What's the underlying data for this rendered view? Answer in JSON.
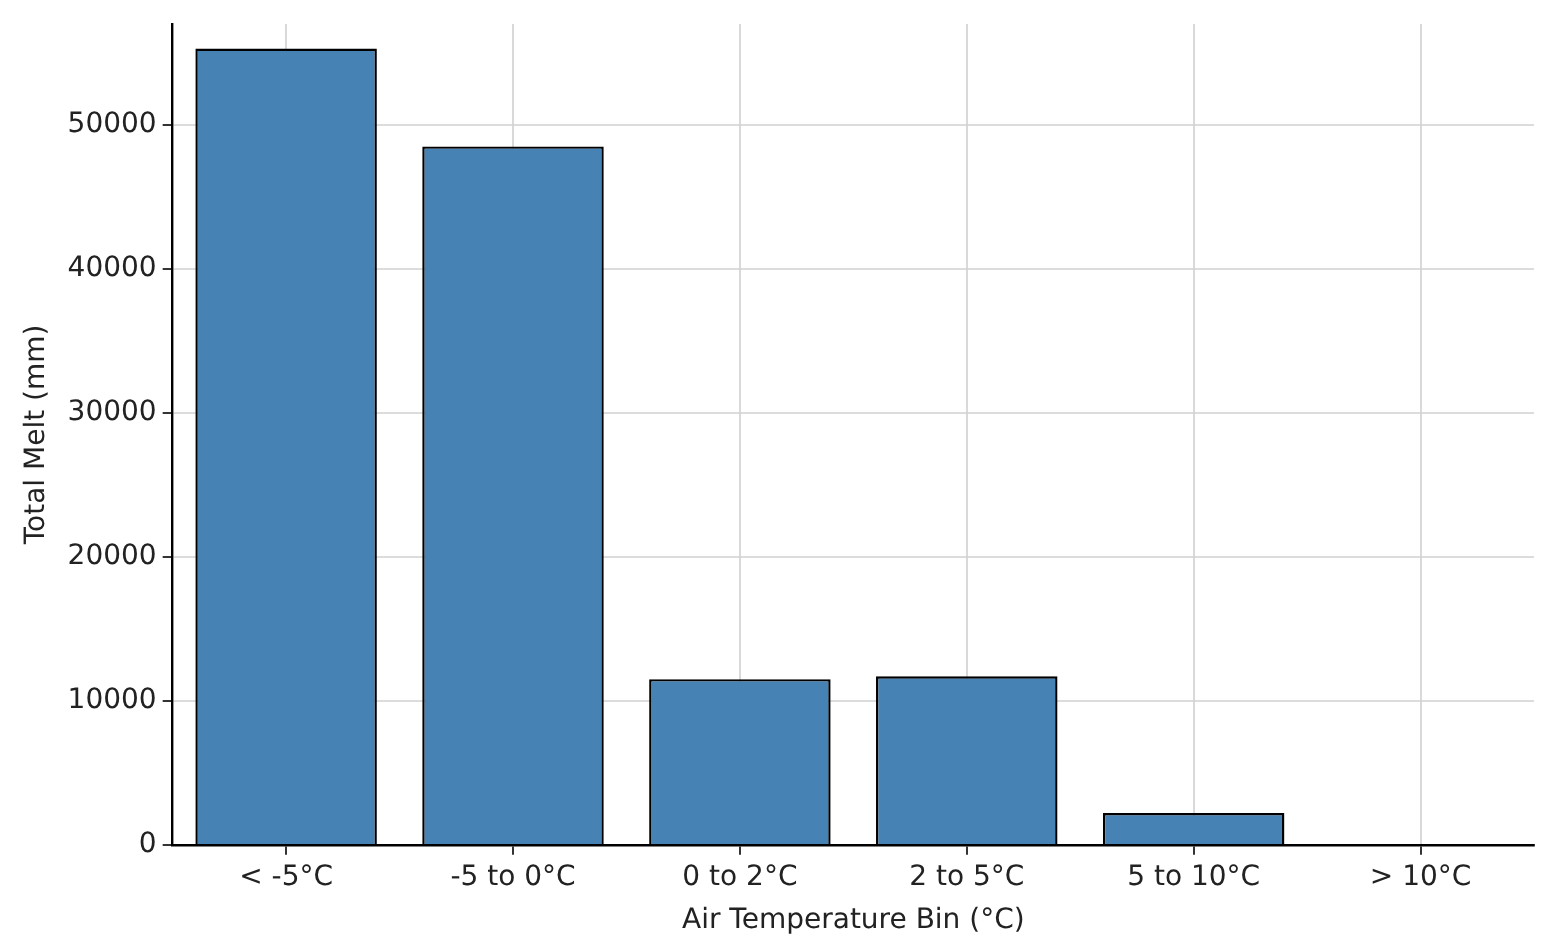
{
  "chart_data": {
    "type": "bar",
    "xlabel": "Air Temperature Bin (°C)",
    "ylabel": "Total Melt (mm)",
    "categories": [
      "< -5°C",
      "-5 to 0°C",
      "0 to 2°C",
      "2 to 5°C",
      "5 to 10°C",
      "> 10°C"
    ],
    "values": [
      55300,
      48500,
      11500,
      11700,
      2200,
      0
    ],
    "color": "#4682b4",
    "ylim": [
      0,
      57000
    ],
    "yticks": [
      0,
      10000,
      20000,
      30000,
      40000,
      50000
    ],
    "grid": true,
    "legend": false
  }
}
